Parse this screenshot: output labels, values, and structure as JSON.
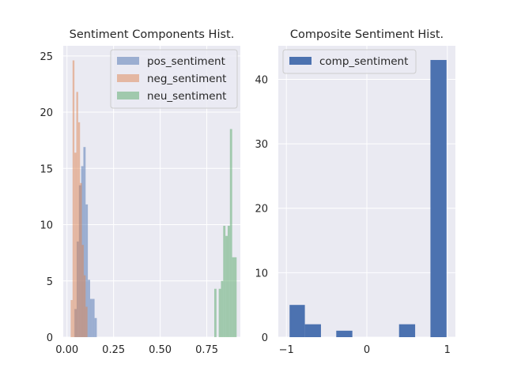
{
  "chart_data": [
    {
      "type": "bar",
      "histogram": true,
      "title": "Sentiment Components Hist.",
      "xlim": [
        -0.02,
        0.93
      ],
      "ylim": [
        0,
        25.9
      ],
      "xticks": [
        0,
        0.25,
        0.5,
        0.75
      ],
      "xtick_labels": [
        "0.00",
        "0.25",
        "0.50",
        "0.75"
      ],
      "yticks": [
        0,
        5,
        10,
        15,
        20,
        25
      ],
      "ytick_labels": [
        "0",
        "5",
        "10",
        "15",
        "20",
        "25"
      ],
      "grid": true,
      "legend_position": "top-right",
      "series": [
        {
          "name": "pos_sentiment",
          "color": "#4c72b0",
          "opacity": 0.5,
          "bins": [
            {
              "x0": 0.04,
              "x1": 0.052,
              "value": 2.5
            },
            {
              "x0": 0.052,
              "x1": 0.064,
              "value": 8.5
            },
            {
              "x0": 0.064,
              "x1": 0.076,
              "value": 13.5
            },
            {
              "x0": 0.076,
              "x1": 0.088,
              "value": 15.2
            },
            {
              "x0": 0.088,
              "x1": 0.1,
              "value": 16.9
            },
            {
              "x0": 0.1,
              "x1": 0.112,
              "value": 11.8
            },
            {
              "x0": 0.112,
              "x1": 0.124,
              "value": 5.1
            },
            {
              "x0": 0.124,
              "x1": 0.136,
              "value": 3.4
            },
            {
              "x0": 0.136,
              "x1": 0.148,
              "value": 3.4
            },
            {
              "x0": 0.148,
              "x1": 0.16,
              "value": 1.7
            }
          ]
        },
        {
          "name": "neg_sentiment",
          "color": "#dd8452",
          "opacity": 0.5,
          "bins": [
            {
              "x0": 0.02,
              "x1": 0.03,
              "value": 3.3
            },
            {
              "x0": 0.03,
              "x1": 0.04,
              "value": 24.6
            },
            {
              "x0": 0.04,
              "x1": 0.05,
              "value": 16.4
            },
            {
              "x0": 0.05,
              "x1": 0.06,
              "value": 21.8
            },
            {
              "x0": 0.06,
              "x1": 0.07,
              "value": 19.1
            },
            {
              "x0": 0.07,
              "x1": 0.08,
              "value": 13.7
            },
            {
              "x0": 0.08,
              "x1": 0.09,
              "value": 8.2
            },
            {
              "x0": 0.09,
              "x1": 0.1,
              "value": 5.5
            },
            {
              "x0": 0.1,
              "x1": 0.11,
              "value": 2.7
            }
          ]
        },
        {
          "name": "neu_sentiment",
          "color": "#55a868",
          "opacity": 0.5,
          "bins": [
            {
              "x0": 0.79,
              "x1": 0.802,
              "value": 4.3
            },
            {
              "x0": 0.802,
              "x1": 0.814,
              "value": 0
            },
            {
              "x0": 0.814,
              "x1": 0.826,
              "value": 4.3
            },
            {
              "x0": 0.826,
              "x1": 0.838,
              "value": 5.0
            },
            {
              "x0": 0.838,
              "x1": 0.85,
              "value": 9.9
            },
            {
              "x0": 0.85,
              "x1": 0.862,
              "value": 9.0
            },
            {
              "x0": 0.862,
              "x1": 0.874,
              "value": 9.9
            },
            {
              "x0": 0.874,
              "x1": 0.886,
              "value": 18.5
            },
            {
              "x0": 0.886,
              "x1": 0.898,
              "value": 7.1
            },
            {
              "x0": 0.898,
              "x1": 0.91,
              "value": 7.1
            }
          ]
        }
      ]
    },
    {
      "type": "bar",
      "histogram": true,
      "title": "Composite Sentiment Hist.",
      "xlim": [
        -1.1,
        1.1
      ],
      "ylim": [
        0,
        45.2
      ],
      "xticks": [
        -1,
        0,
        1
      ],
      "xtick_labels": [
        "−1",
        "0",
        "1"
      ],
      "yticks": [
        0,
        10,
        20,
        30,
        40
      ],
      "ytick_labels": [
        "0",
        "10",
        "20",
        "30",
        "40"
      ],
      "grid": true,
      "legend_position": "top-left",
      "series": [
        {
          "name": "comp_sentiment",
          "color": "#4c72b0",
          "opacity": 1,
          "bins": [
            {
              "x0": -0.96,
              "x1": -0.77,
              "value": 5
            },
            {
              "x0": -0.77,
              "x1": -0.57,
              "value": 2
            },
            {
              "x0": -0.57,
              "x1": -0.38,
              "value": 0
            },
            {
              "x0": -0.38,
              "x1": -0.18,
              "value": 1
            },
            {
              "x0": -0.18,
              "x1": 0.01,
              "value": 0
            },
            {
              "x0": 0.01,
              "x1": 0.21,
              "value": 0
            },
            {
              "x0": 0.21,
              "x1": 0.4,
              "value": 0
            },
            {
              "x0": 0.4,
              "x1": 0.6,
              "value": 2
            },
            {
              "x0": 0.6,
              "x1": 0.79,
              "value": 0
            },
            {
              "x0": 0.79,
              "x1": 0.99,
              "value": 43
            }
          ]
        }
      ]
    }
  ]
}
